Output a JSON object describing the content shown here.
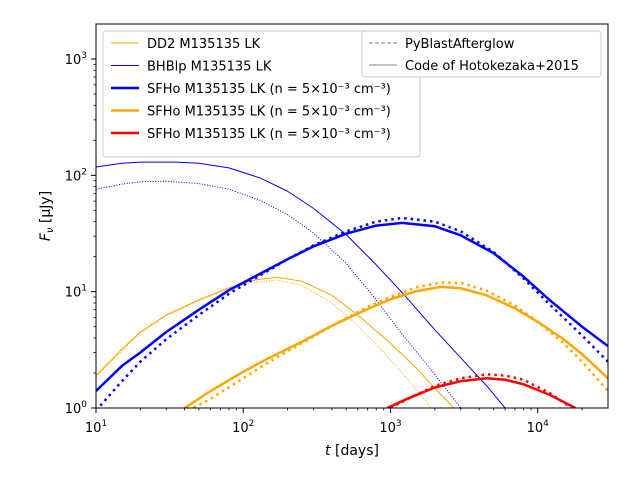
{
  "chart_data": {
    "type": "line",
    "xscale": "log",
    "yscale": "log",
    "xlim": [
      10,
      30000
    ],
    "ylim": [
      1,
      2000
    ],
    "xlabel": "t [days]",
    "ylabel": "F_ν [μJy]",
    "x_ticks": [
      {
        "value": 10,
        "base": "10",
        "exp": "1"
      },
      {
        "value": 100,
        "base": "10",
        "exp": "2"
      },
      {
        "value": 1000,
        "base": "10",
        "exp": "3"
      },
      {
        "value": 10000,
        "base": "10",
        "exp": "4"
      }
    ],
    "y_ticks": [
      {
        "value": 1,
        "base": "10",
        "exp": "0"
      },
      {
        "value": 10,
        "base": "10",
        "exp": "1"
      },
      {
        "value": 100,
        "base": "10",
        "exp": "2"
      },
      {
        "value": 1000,
        "base": "10",
        "exp": "3"
      }
    ],
    "grid": false,
    "legend_left": {
      "placement": "upper-left",
      "entries": [
        {
          "text": "DD2 M135135 LK",
          "color": "#FFA500",
          "width": 1
        },
        {
          "text": "BHBlp M135135 LK",
          "color": "#0000FF",
          "width": 1
        },
        {
          "text": "SFHo M135135 LK (n = 5×10⁻³ cm⁻³)",
          "color": "#0000FF",
          "width": 2.5
        },
        {
          "text": "SFHo M135135 LK (n = 5×10⁻³ cm⁻³)",
          "color": "#FFA500",
          "width": 2.5
        },
        {
          "text": "SFHo M135135 LK (n = 5×10⁻³ cm⁻³)",
          "color": "#FF0000",
          "width": 2.5
        }
      ]
    },
    "legend_right": {
      "placement": "upper-right",
      "entries": [
        {
          "text": "PyBlastAfterglow",
          "style": "dashed",
          "color": "#808080"
        },
        {
          "text": "Code of Hotokezaka+2015",
          "style": "solid",
          "color": "#808080"
        }
      ]
    },
    "series": [
      {
        "color": "#FFA500",
        "width": 1,
        "style": "solid",
        "points": [
          [
            10,
            1.9
          ],
          [
            15,
            3.2
          ],
          [
            20,
            4.5
          ],
          [
            30,
            6.3
          ],
          [
            50,
            8.5
          ],
          [
            80,
            10.8
          ],
          [
            120,
            12.6
          ],
          [
            170,
            13.3
          ],
          [
            250,
            12.3
          ],
          [
            400,
            9.3
          ],
          [
            600,
            6.3
          ],
          [
            1000,
            3.6
          ],
          [
            1500,
            2.2
          ],
          [
            2200,
            1.3
          ],
          [
            2700,
            1.0
          ]
        ]
      },
      {
        "color": "#FFA500",
        "width": 1,
        "style": "dotted",
        "points": [
          [
            10,
            1.85
          ],
          [
            15,
            3.1
          ],
          [
            20,
            4.4
          ],
          [
            30,
            6.2
          ],
          [
            50,
            8.4
          ],
          [
            80,
            10.6
          ],
          [
            120,
            12.1
          ],
          [
            170,
            12.6
          ],
          [
            250,
            11.3
          ],
          [
            400,
            8.0
          ],
          [
            600,
            5.1
          ],
          [
            1000,
            2.6
          ],
          [
            1500,
            1.45
          ],
          [
            1900,
            1.0
          ]
        ]
      },
      {
        "color": "#0000FF",
        "width": 1,
        "style": "solid",
        "points": [
          [
            10,
            118
          ],
          [
            15,
            127
          ],
          [
            20,
            130
          ],
          [
            35,
            130
          ],
          [
            50,
            127
          ],
          [
            80,
            116
          ],
          [
            130,
            95
          ],
          [
            200,
            73
          ],
          [
            300,
            52
          ],
          [
            500,
            31
          ],
          [
            800,
            17
          ],
          [
            1200,
            9.8
          ],
          [
            2000,
            4.7
          ],
          [
            3000,
            2.7
          ],
          [
            4500,
            1.55
          ],
          [
            6000,
            1.0
          ]
        ]
      },
      {
        "color": "#0000FF",
        "width": 1,
        "style": "dotted",
        "points": [
          [
            10,
            76
          ],
          [
            15,
            84
          ],
          [
            20,
            88
          ],
          [
            30,
            89
          ],
          [
            50,
            85
          ],
          [
            80,
            76
          ],
          [
            130,
            61
          ],
          [
            200,
            46
          ],
          [
            300,
            32
          ],
          [
            500,
            17.5
          ],
          [
            800,
            8.5
          ],
          [
            1200,
            4.3
          ],
          [
            1800,
            2.3
          ],
          [
            2500,
            1.35
          ],
          [
            3000,
            1.0
          ]
        ]
      },
      {
        "color": "#0000FF",
        "width": 2.5,
        "style": "solid",
        "points": [
          [
            10,
            1.4
          ],
          [
            15,
            2.3
          ],
          [
            20,
            3.0
          ],
          [
            30,
            4.5
          ],
          [
            50,
            7.0
          ],
          [
            80,
            10.3
          ],
          [
            120,
            13.5
          ],
          [
            200,
            19
          ],
          [
            300,
            24.5
          ],
          [
            500,
            31.5
          ],
          [
            800,
            37
          ],
          [
            1200,
            39
          ],
          [
            2000,
            36.5
          ],
          [
            3000,
            30.5
          ],
          [
            5000,
            21.5
          ],
          [
            8000,
            13.5
          ],
          [
            12000,
            8.5
          ],
          [
            20000,
            5.0
          ],
          [
            30000,
            3.4
          ]
        ]
      },
      {
        "color": "#0000FF",
        "width": 2.5,
        "style": "dotted",
        "points": [
          [
            10,
            0.95
          ],
          [
            15,
            1.7
          ],
          [
            20,
            2.5
          ],
          [
            30,
            3.9
          ],
          [
            50,
            6.3
          ],
          [
            80,
            9.6
          ],
          [
            120,
            13.0
          ],
          [
            200,
            19
          ],
          [
            300,
            25
          ],
          [
            500,
            33
          ],
          [
            800,
            40
          ],
          [
            1200,
            43
          ],
          [
            2000,
            40
          ],
          [
            3000,
            33
          ],
          [
            5000,
            22
          ],
          [
            8000,
            13
          ],
          [
            12000,
            7.8
          ],
          [
            20000,
            4.2
          ],
          [
            30000,
            2.5
          ]
        ]
      },
      {
        "color": "#FFA500",
        "width": 2.5,
        "style": "solid",
        "points": [
          [
            40,
            1.0
          ],
          [
            60,
            1.4
          ],
          [
            100,
            2.05
          ],
          [
            150,
            2.7
          ],
          [
            250,
            3.7
          ],
          [
            400,
            5.1
          ],
          [
            700,
            7.1
          ],
          [
            1000,
            8.6
          ],
          [
            1500,
            10.1
          ],
          [
            2200,
            11
          ],
          [
            3000,
            10.7
          ],
          [
            4500,
            9.3
          ],
          [
            7000,
            7.2
          ],
          [
            10000,
            5.5
          ],
          [
            15000,
            3.9
          ],
          [
            20000,
            2.9
          ],
          [
            30000,
            1.8
          ]
        ]
      },
      {
        "color": "#FFA500",
        "width": 2.5,
        "style": "dotted",
        "points": [
          [
            42,
            0.95
          ],
          [
            60,
            1.2
          ],
          [
            100,
            1.8
          ],
          [
            150,
            2.5
          ],
          [
            250,
            3.6
          ],
          [
            400,
            5.1
          ],
          [
            700,
            7.4
          ],
          [
            1000,
            9.0
          ],
          [
            1500,
            10.9
          ],
          [
            2200,
            12.0
          ],
          [
            3000,
            11.9
          ],
          [
            4500,
            10.2
          ],
          [
            7000,
            7.6
          ],
          [
            10000,
            5.5
          ],
          [
            15000,
            3.6
          ],
          [
            20000,
            2.5
          ],
          [
            30000,
            1.4
          ]
        ]
      },
      {
        "color": "#FF0000",
        "width": 2.5,
        "style": "solid",
        "points": [
          [
            950,
            1.0
          ],
          [
            1300,
            1.2
          ],
          [
            2000,
            1.5
          ],
          [
            3000,
            1.7
          ],
          [
            4500,
            1.8
          ],
          [
            6000,
            1.75
          ],
          [
            8000,
            1.6
          ],
          [
            12000,
            1.3
          ],
          [
            18000,
            1.0
          ]
        ]
      },
      {
        "color": "#FF0000",
        "width": 2.5,
        "style": "dotted",
        "points": [
          [
            1000,
            1.0
          ],
          [
            1400,
            1.25
          ],
          [
            2000,
            1.55
          ],
          [
            3000,
            1.8
          ],
          [
            4500,
            1.95
          ],
          [
            6000,
            1.9
          ],
          [
            8000,
            1.75
          ],
          [
            12000,
            1.35
          ],
          [
            17000,
            1.0
          ]
        ]
      }
    ]
  }
}
